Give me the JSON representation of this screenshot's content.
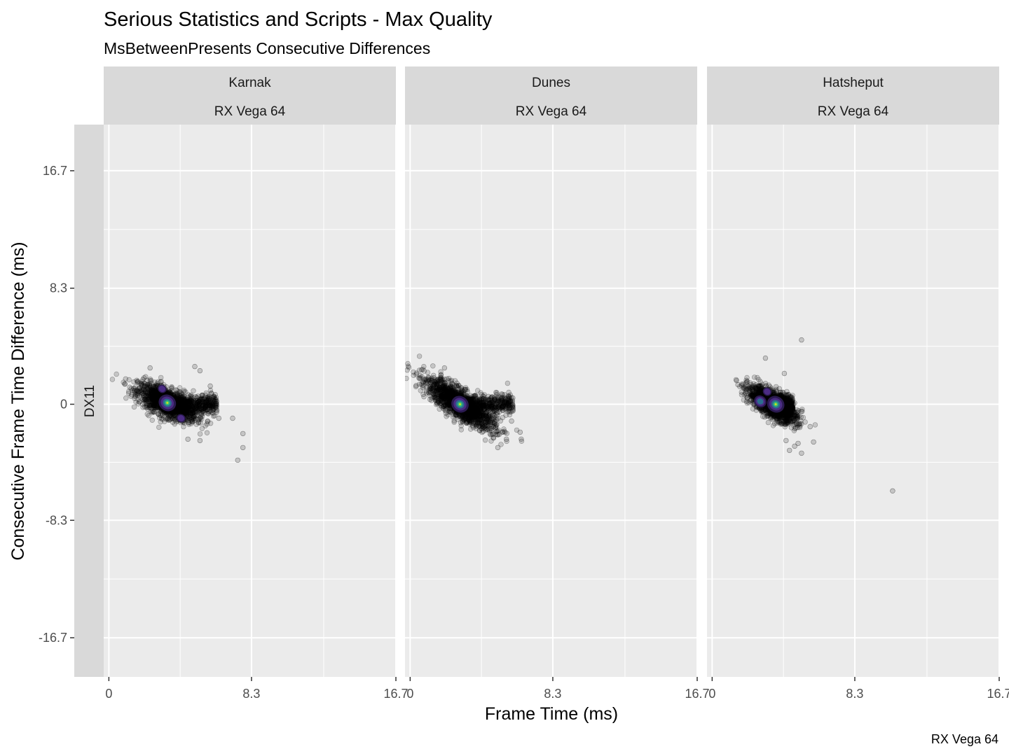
{
  "title": "Serious Statistics and Scripts - Max Quality",
  "subtitle": "MsBetweenPresents Consecutive Differences",
  "caption": "RX Vega 64",
  "chart_data": {
    "type": "scatter",
    "title": "Serious Statistics and Scripts - Max Quality",
    "subtitle": "MsBetweenPresents Consecutive Differences",
    "xlabel": "Frame Time (ms)",
    "ylabel": "Consecutive Frame Time Difference (ms)",
    "xlim": [
      -0.3,
      16.7
    ],
    "ylim": [
      -19.5,
      20
    ],
    "x_ticks": [
      0,
      8.3,
      16.7
    ],
    "x_tick_labels": [
      "0",
      "8.3",
      "16.7"
    ],
    "y_ticks": [
      16.7,
      8.3,
      0,
      -8.3,
      -16.7
    ],
    "y_tick_labels": [
      "16.7",
      "8.3",
      "0",
      "-8.3",
      "-16.7"
    ],
    "grid": true,
    "row_facet": "DX11",
    "legend": "none",
    "panels": [
      {
        "name": "Karnak",
        "gpu": "RX Vega 64",
        "cluster": {
          "cx": 3.4,
          "cy": 0.1,
          "sx": 0.85,
          "sy": 0.9,
          "slope": -0.5
        },
        "tail": {
          "x_end": 6.3,
          "y": 0.0
        },
        "density_peaks": [
          {
            "x": 3.4,
            "y": 0.1,
            "level": 3
          },
          {
            "x": 3.1,
            "y": 1.1,
            "level": 1
          },
          {
            "x": 4.2,
            "y": -1.0,
            "level": 1
          }
        ],
        "outliers": [
          {
            "x": 2.4,
            "y": 2.6
          },
          {
            "x": 5.0,
            "y": 2.7
          },
          {
            "x": 5.3,
            "y": 2.4
          },
          {
            "x": 5.9,
            "y": 1.3
          },
          {
            "x": 6.4,
            "y": -1.0
          },
          {
            "x": 7.2,
            "y": -1.0
          },
          {
            "x": 7.8,
            "y": -2.1
          },
          {
            "x": 7.8,
            "y": -3.1
          },
          {
            "x": 7.5,
            "y": -4.0
          },
          {
            "x": 5.3,
            "y": -2.6
          },
          {
            "x": 4.6,
            "y": -2.5
          }
        ]
      },
      {
        "name": "Dunes",
        "gpu": "RX Vega 64",
        "cluster": {
          "cx": 2.9,
          "cy": 0.0,
          "sx": 1.0,
          "sy": 0.95,
          "slope": -0.75
        },
        "tail": {
          "x_end": 6.0,
          "y": 0.0
        },
        "density_peaks": [
          {
            "x": 2.9,
            "y": 0.0,
            "level": 3
          }
        ],
        "outliers": [
          {
            "x": 2.0,
            "y": 2.6
          },
          {
            "x": 1.8,
            "y": 1.9
          },
          {
            "x": 6.4,
            "y": -2.0
          },
          {
            "x": 5.1,
            "y": -3.1
          },
          {
            "x": 5.9,
            "y": -1.2
          },
          {
            "x": 5.6,
            "y": -2.5
          }
        ]
      },
      {
        "name": "Hatsheput",
        "gpu": "RX Vega 64",
        "cluster": {
          "cx": 3.5,
          "cy": 0.0,
          "sx": 0.7,
          "sy": 0.8,
          "slope": -0.65
        },
        "tail": {
          "x_end": 4.7,
          "y": 0.0
        },
        "density_peaks": [
          {
            "x": 3.7,
            "y": 0.0,
            "level": 3
          },
          {
            "x": 2.8,
            "y": 0.2,
            "level": 2
          },
          {
            "x": 3.2,
            "y": 0.9,
            "level": 1
          }
        ],
        "outliers": [
          {
            "x": 5.2,
            "y": 4.6
          },
          {
            "x": 10.5,
            "y": -6.2
          },
          {
            "x": 3.1,
            "y": 3.3
          },
          {
            "x": 1.5,
            "y": 1.4
          },
          {
            "x": 4.2,
            "y": 2.2
          },
          {
            "x": 4.9,
            "y": -1.4
          },
          {
            "x": 5.7,
            "y": -1.6
          },
          {
            "x": 5.0,
            "y": -2.8
          },
          {
            "x": 5.9,
            "y": -2.7
          },
          {
            "x": 4.5,
            "y": -3.3
          },
          {
            "x": 4.8,
            "y": -3.0
          },
          {
            "x": 5.2,
            "y": -3.5
          },
          {
            "x": 4.3,
            "y": -2.6
          }
        ]
      }
    ]
  }
}
